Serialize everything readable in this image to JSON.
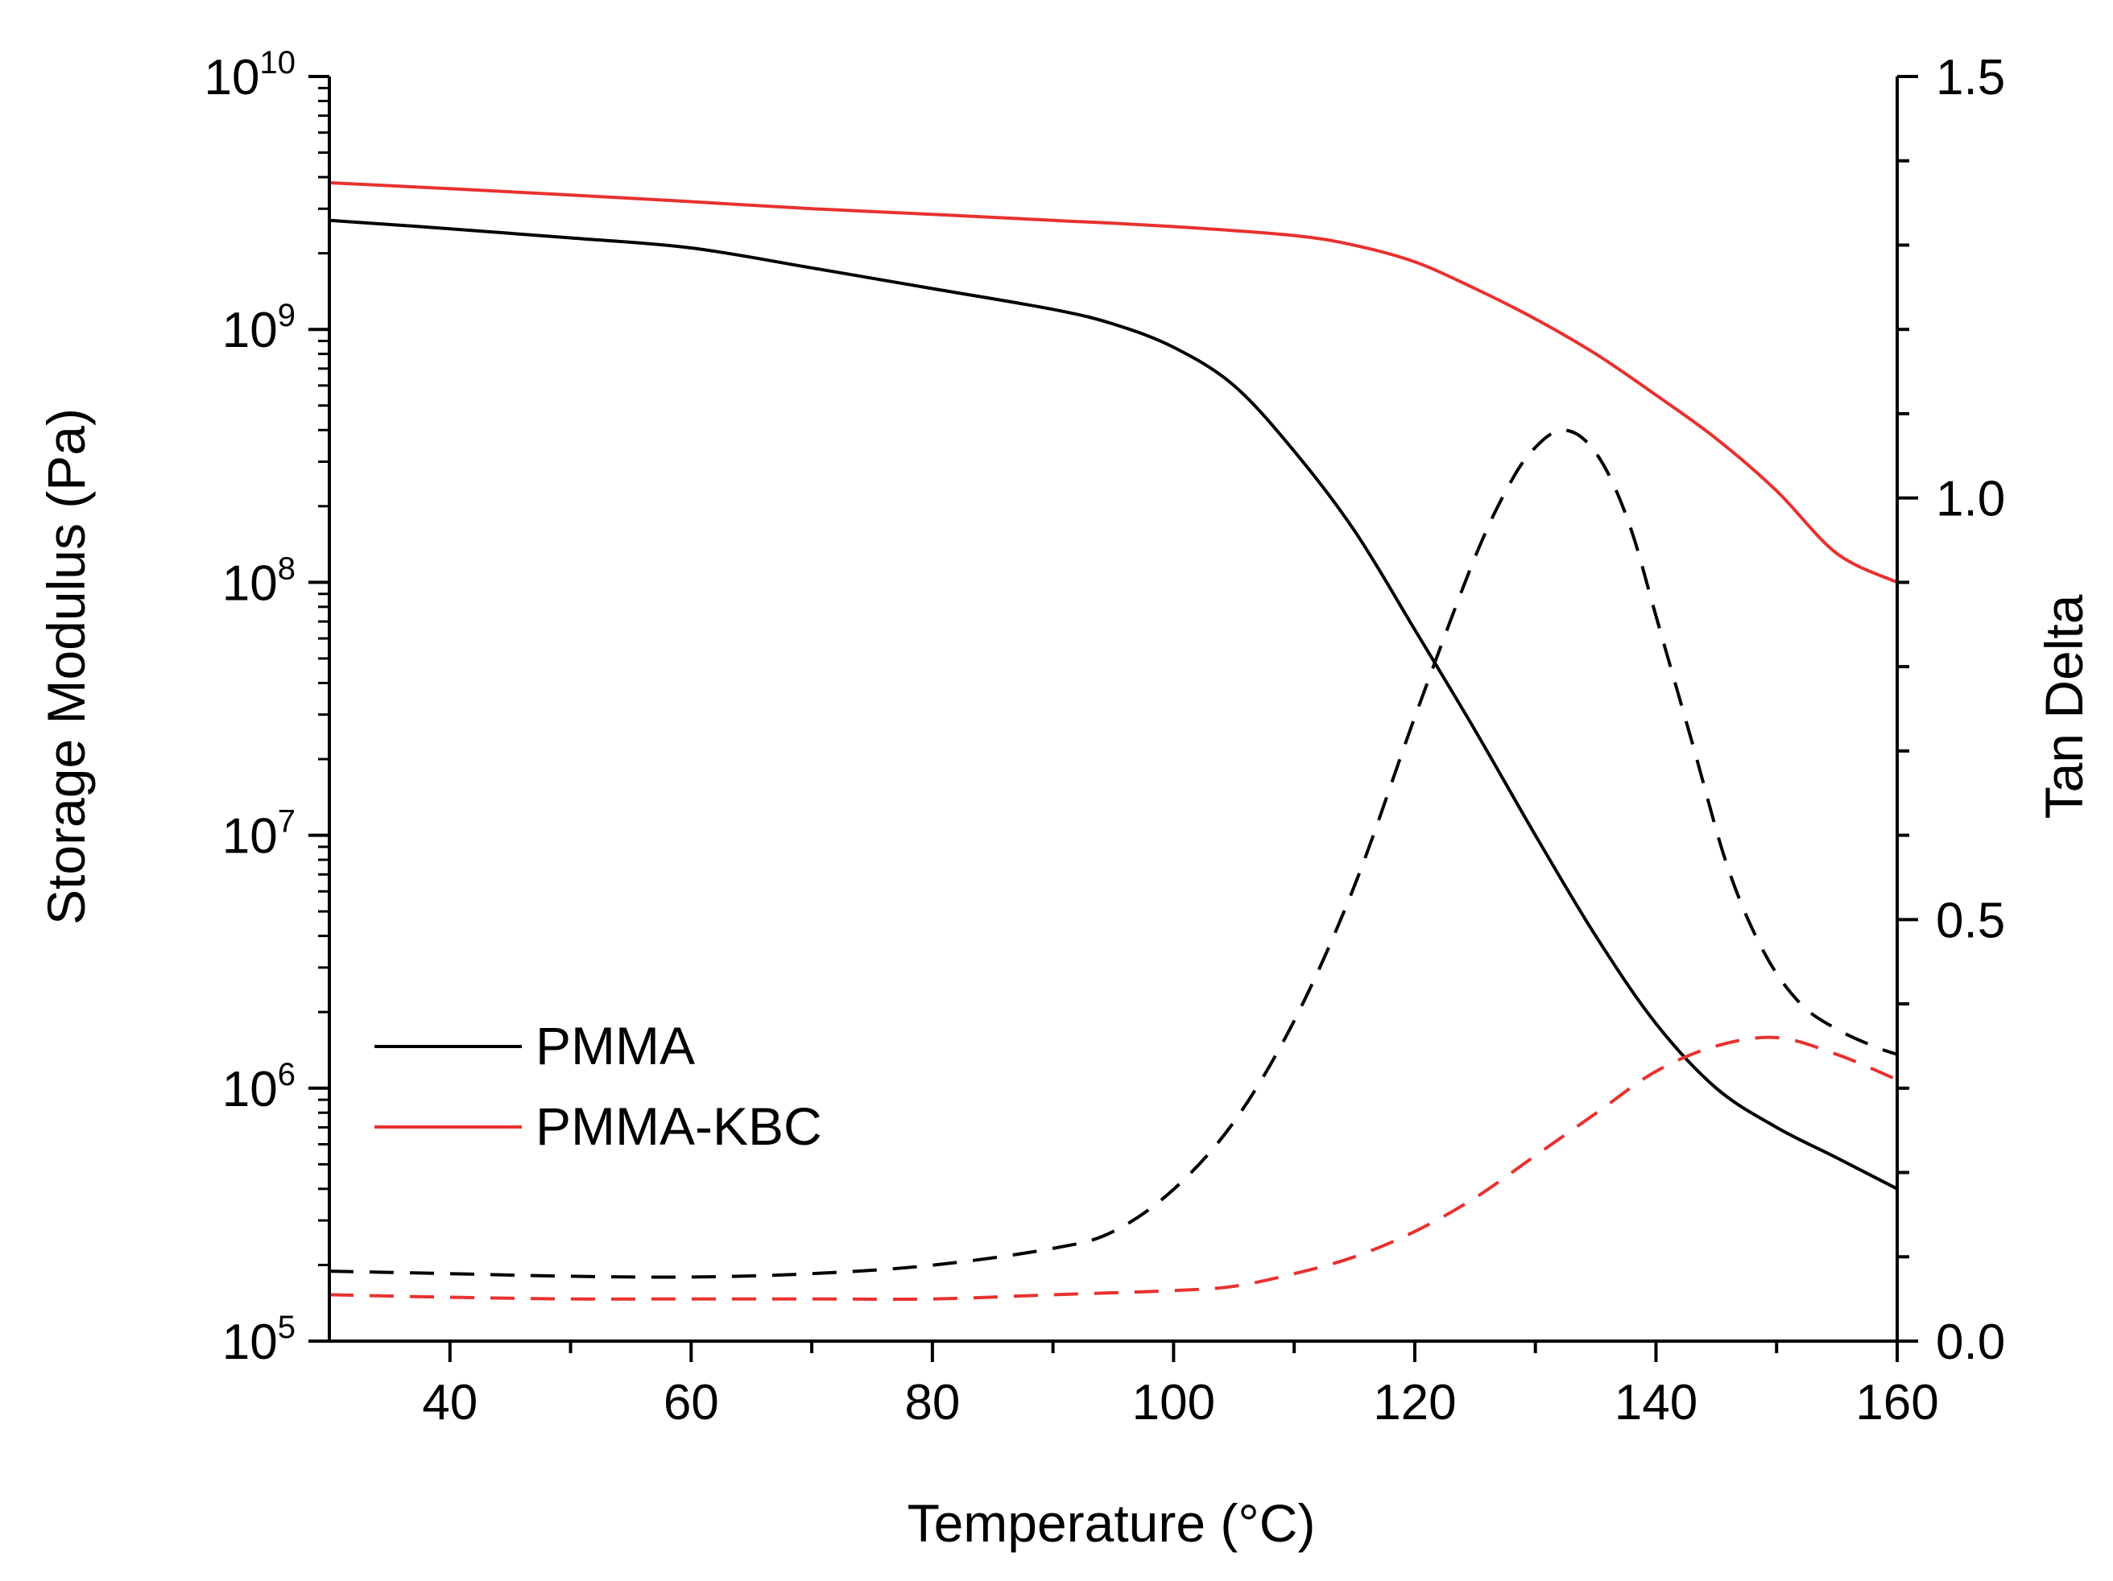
{
  "chart_data": {
    "type": "line",
    "title": "",
    "xlabel": "Temperature (°C)",
    "ylabel_left": "Storage Modulus (Pa)",
    "ylabel_right": "Tan Delta",
    "xlim": [
      30,
      160
    ],
    "ylim_left_log10": [
      5,
      10
    ],
    "ylim_right": [
      0.0,
      1.5
    ],
    "x_ticks": [
      40,
      60,
      80,
      100,
      120,
      140,
      160
    ],
    "x_tick_labels": [
      "40",
      "60",
      "80",
      "100",
      "120",
      "140",
      "160"
    ],
    "y_left_ticks": [
      {
        "exp": 5,
        "base": "10",
        "sup": "5"
      },
      {
        "exp": 6,
        "base": "10",
        "sup": "6"
      },
      {
        "exp": 7,
        "base": "10",
        "sup": "7"
      },
      {
        "exp": 8,
        "base": "10",
        "sup": "8"
      },
      {
        "exp": 9,
        "base": "10",
        "sup": "9"
      },
      {
        "exp": 10,
        "base": "10",
        "sup": "10"
      }
    ],
    "y_right_ticks": [
      {
        "value": 0.0,
        "label": "0.0"
      },
      {
        "value": 0.5,
        "label": "0.5"
      },
      {
        "value": 1.0,
        "label": "1.0"
      },
      {
        "value": 1.5,
        "label": "1.5"
      }
    ],
    "legend": [
      {
        "label": "PMMA",
        "color": "#000000"
      },
      {
        "label": "PMMA-KBC",
        "color": "#e8312f"
      }
    ],
    "legend_position": "bottom-left",
    "series": [
      {
        "name": "PMMA storage modulus",
        "axis": "left",
        "color": "#000000",
        "style": "solid",
        "x": [
          30,
          40,
          50,
          60,
          70,
          80,
          90,
          95,
          100,
          105,
          110,
          115,
          120,
          125,
          130,
          135,
          140,
          145,
          150,
          155,
          160
        ],
        "y": [
          2700000000.0,
          2500000000.0,
          2300000000.0,
          2100000000.0,
          1750000000.0,
          1450000000.0,
          1200000000.0,
          1050000000.0,
          850000000.0,
          600000000.0,
          330000000.0,
          160000000.0,
          65000000.0,
          26000000.0,
          10000000.0,
          4000000.0,
          1800000.0,
          1000000.0,
          700000.0,
          530000.0,
          400000.0
        ]
      },
      {
        "name": "PMMA-KBC storage modulus",
        "axis": "left",
        "color": "#e8312f",
        "style": "solid",
        "x": [
          30,
          40,
          50,
          60,
          70,
          80,
          90,
          100,
          110,
          115,
          120,
          125,
          130,
          135,
          140,
          145,
          150,
          155,
          160
        ],
        "y": [
          3800000000.0,
          3600000000.0,
          3400000000.0,
          3200000000.0,
          3000000000.0,
          2850000000.0,
          2700000000.0,
          2550000000.0,
          2350000000.0,
          2150000000.0,
          1850000000.0,
          1450000000.0,
          1100000000.0,
          800000000.0,
          550000000.0,
          370000000.0,
          230000000.0,
          130000000.0,
          100000000.0
        ]
      },
      {
        "name": "PMMA tan delta",
        "axis": "right",
        "color": "#000000",
        "style": "dashed",
        "x": [
          30,
          40,
          50,
          60,
          70,
          80,
          90,
          95,
          100,
          105,
          110,
          115,
          120,
          125,
          128,
          130,
          132,
          134,
          136,
          138,
          140,
          143,
          146,
          149,
          152,
          155,
          158,
          160
        ],
        "y": [
          0.083,
          0.08,
          0.077,
          0.076,
          0.08,
          0.09,
          0.11,
          0.13,
          0.18,
          0.26,
          0.38,
          0.54,
          0.74,
          0.93,
          1.02,
          1.06,
          1.08,
          1.07,
          1.03,
          0.96,
          0.86,
          0.71,
          0.56,
          0.46,
          0.4,
          0.37,
          0.35,
          0.34
        ]
      },
      {
        "name": "PMMA-KBC tan delta",
        "axis": "right",
        "color": "#e8312f",
        "style": "dashed",
        "x": [
          30,
          40,
          50,
          60,
          70,
          80,
          90,
          100,
          105,
          110,
          115,
          120,
          125,
          130,
          135,
          140,
          145,
          150,
          155,
          160
        ],
        "y": [
          0.055,
          0.052,
          0.05,
          0.05,
          0.05,
          0.05,
          0.055,
          0.06,
          0.065,
          0.08,
          0.1,
          0.13,
          0.17,
          0.22,
          0.27,
          0.32,
          0.35,
          0.36,
          0.34,
          0.31
        ]
      }
    ]
  }
}
